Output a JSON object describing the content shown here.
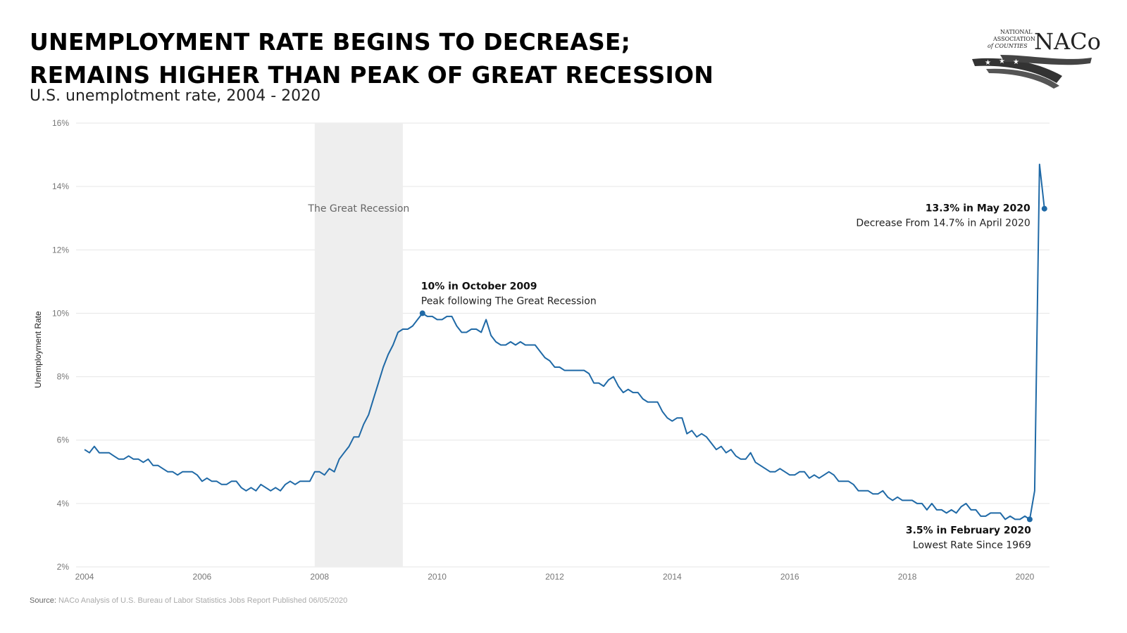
{
  "title_line1": "UNEMPLOYMENT RATE BEGINS TO DECREASE;",
  "title_line2": "REMAINS HIGHER THAN PEAK OF GREAT RECESSION",
  "subtitle": "U.S. unemplotment rate, 2004 - 2020",
  "logo": {
    "top1": "NATIONAL",
    "top2": "ASSOCIATION",
    "top3": "of COUNTIES",
    "mark": "NACo"
  },
  "source_label": "Source:",
  "source_text": "NACo Analysis of U.S. Bureau of Labor Statistics Jobs Report Published 06/05/2020",
  "colors": {
    "line": "#1f69a6",
    "shade": "#eeeeee",
    "grid": "#e6e6e6"
  },
  "chart_data": {
    "type": "line",
    "ylabel": "Unemployment Rate",
    "xlabel": "",
    "xlim": [
      2004,
      2020.42
    ],
    "ylim": [
      2,
      16
    ],
    "yticks": [
      2,
      4,
      6,
      8,
      10,
      12,
      14,
      16
    ],
    "ytick_labels": [
      "2%",
      "4%",
      "6%",
      "8%",
      "10%",
      "12%",
      "14%",
      "16%"
    ],
    "xticks": [
      2004,
      2006,
      2008,
      2010,
      2012,
      2014,
      2016,
      2018,
      2020
    ],
    "xtick_labels": [
      "2004",
      "2006",
      "2008",
      "2010",
      "2012",
      "2014",
      "2016",
      "2018",
      "2020"
    ],
    "grid": true,
    "x_start": "2004-01",
    "series": [
      {
        "values": [
          5.7,
          5.6,
          5.8,
          5.6,
          5.6,
          5.6,
          5.5,
          5.4,
          5.4,
          5.5,
          5.4,
          5.4,
          5.3,
          5.4,
          5.2,
          5.2,
          5.1,
          5.0,
          5.0,
          4.9,
          5.0,
          5.0,
          5.0,
          4.9,
          4.7,
          4.8,
          4.7,
          4.7,
          4.6,
          4.6,
          4.7,
          4.7,
          4.5,
          4.4,
          4.5,
          4.4,
          4.6,
          4.5,
          4.4,
          4.5,
          4.4,
          4.6,
          4.7,
          4.6,
          4.7,
          4.7,
          4.7,
          5.0,
          5.0,
          4.9,
          5.1,
          5.0,
          5.4,
          5.6,
          5.8,
          6.1,
          6.1,
          6.5,
          6.8,
          7.3,
          7.8,
          8.3,
          8.7,
          9.0,
          9.4,
          9.5,
          9.5,
          9.6,
          9.8,
          10.0,
          9.9,
          9.9,
          9.8,
          9.8,
          9.9,
          9.9,
          9.6,
          9.4,
          9.4,
          9.5,
          9.5,
          9.4,
          9.8,
          9.3,
          9.1,
          9.0,
          9.0,
          9.1,
          9.0,
          9.1,
          9.0,
          9.0,
          9.0,
          8.8,
          8.6,
          8.5,
          8.3,
          8.3,
          8.2,
          8.2,
          8.2,
          8.2,
          8.2,
          8.1,
          7.8,
          7.8,
          7.7,
          7.9,
          8.0,
          7.7,
          7.5,
          7.6,
          7.5,
          7.5,
          7.3,
          7.2,
          7.2,
          7.2,
          6.9,
          6.7,
          6.6,
          6.7,
          6.7,
          6.2,
          6.3,
          6.1,
          6.2,
          6.1,
          5.9,
          5.7,
          5.8,
          5.6,
          5.7,
          5.5,
          5.4,
          5.4,
          5.6,
          5.3,
          5.2,
          5.1,
          5.0,
          5.0,
          5.1,
          5.0,
          4.9,
          4.9,
          5.0,
          5.0,
          4.8,
          4.9,
          4.8,
          4.9,
          5.0,
          4.9,
          4.7,
          4.7,
          4.7,
          4.6,
          4.4,
          4.4,
          4.4,
          4.3,
          4.3,
          4.4,
          4.2,
          4.1,
          4.2,
          4.1,
          4.1,
          4.1,
          4.0,
          4.0,
          3.8,
          4.0,
          3.8,
          3.8,
          3.7,
          3.8,
          3.7,
          3.9,
          4.0,
          3.8,
          3.8,
          3.6,
          3.6,
          3.7,
          3.7,
          3.7,
          3.5,
          3.6,
          3.5,
          3.5,
          3.6,
          3.5,
          4.4,
          14.7,
          13.3
        ]
      }
    ],
    "shaded_period": {
      "label": "The Great Recession",
      "start": "2007-12",
      "end": "2009-06"
    },
    "annotations": [
      {
        "date": "2009-10",
        "value": 10.0,
        "title": "10% in October 2009",
        "text": "Peak following The Great Recession"
      },
      {
        "date": "2020-05",
        "value": 13.3,
        "title": "13.3% in May 2020",
        "text": "Decrease From 14.7% in April 2020"
      },
      {
        "date": "2020-02",
        "value": 3.5,
        "title": "3.5% in February 2020",
        "text": "Lowest Rate Since 1969"
      }
    ]
  }
}
